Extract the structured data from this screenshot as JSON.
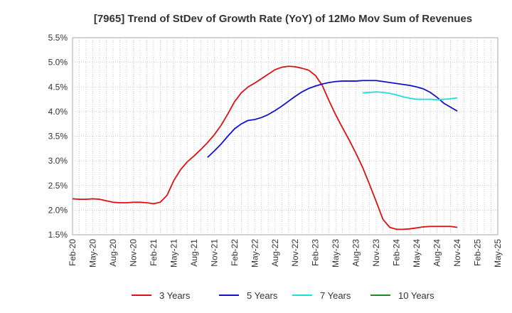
{
  "chart_data": {
    "type": "line",
    "title": "[7965]  Trend of StDev of Growth Rate (YoY) of 12Mo Mov Sum of Revenues",
    "xlabel": "",
    "ylabel": "",
    "ylim": [
      1.5,
      5.5
    ],
    "y_ticks": [
      "1.5%",
      "2.0%",
      "2.5%",
      "3.0%",
      "3.5%",
      "4.0%",
      "4.5%",
      "5.0%",
      "5.5%"
    ],
    "x_tick_labels": [
      "Feb-20",
      "May-20",
      "Aug-20",
      "Nov-20",
      "Feb-21",
      "May-21",
      "Aug-21",
      "Nov-21",
      "Feb-22",
      "May-22",
      "Aug-22",
      "Nov-22",
      "Feb-23",
      "May-23",
      "Aug-23",
      "Nov-23",
      "Feb-24",
      "May-24",
      "Aug-24",
      "Nov-24",
      "Feb-25",
      "May-25"
    ],
    "grid": true,
    "legend_position": "bottom",
    "series": [
      {
        "name": "3 Years",
        "color": "#dd1111",
        "start": "Feb-20",
        "values": [
          2.23,
          2.22,
          2.22,
          2.23,
          2.22,
          2.19,
          2.16,
          2.15,
          2.15,
          2.16,
          2.16,
          2.15,
          2.13,
          2.16,
          2.3,
          2.6,
          2.82,
          2.98,
          3.1,
          3.23,
          3.37,
          3.53,
          3.72,
          3.95,
          4.2,
          4.38,
          4.5,
          4.58,
          4.67,
          4.76,
          4.85,
          4.9,
          4.92,
          4.91,
          4.88,
          4.84,
          4.73,
          4.53,
          4.22,
          3.93,
          3.67,
          3.42,
          3.15,
          2.86,
          2.52,
          2.17,
          1.81,
          1.65,
          1.61,
          1.61,
          1.62,
          1.64,
          1.66,
          1.67,
          1.67,
          1.67,
          1.67,
          1.65
        ]
      },
      {
        "name": "5 Years",
        "color": "#1111cc",
        "start": "Feb-20",
        "values": [
          null,
          null,
          null,
          null,
          null,
          null,
          null,
          null,
          null,
          null,
          null,
          null,
          null,
          null,
          null,
          null,
          null,
          null,
          null,
          null,
          3.07,
          3.2,
          3.34,
          3.5,
          3.65,
          3.75,
          3.82,
          3.84,
          3.88,
          3.94,
          4.02,
          4.11,
          4.21,
          4.31,
          4.4,
          4.47,
          4.52,
          4.56,
          4.59,
          4.61,
          4.62,
          4.62,
          4.62,
          4.63,
          4.63,
          4.63,
          4.61,
          4.59,
          4.57,
          4.55,
          4.53,
          4.5,
          4.46,
          4.39,
          4.29,
          4.17,
          4.09,
          4.01
        ]
      },
      {
        "name": "7 Years",
        "color": "#22dddd",
        "start": "Feb-20",
        "values": [
          null,
          null,
          null,
          null,
          null,
          null,
          null,
          null,
          null,
          null,
          null,
          null,
          null,
          null,
          null,
          null,
          null,
          null,
          null,
          null,
          null,
          null,
          null,
          null,
          null,
          null,
          null,
          null,
          null,
          null,
          null,
          null,
          null,
          null,
          null,
          null,
          null,
          null,
          null,
          null,
          null,
          null,
          null,
          4.38,
          4.39,
          4.4,
          4.39,
          4.37,
          4.34,
          4.3,
          4.27,
          4.25,
          4.25,
          4.25,
          4.24,
          4.25,
          4.26,
          4.28
        ]
      },
      {
        "name": "10 Years",
        "color": "#228822",
        "start": "Feb-20",
        "values": []
      }
    ]
  }
}
